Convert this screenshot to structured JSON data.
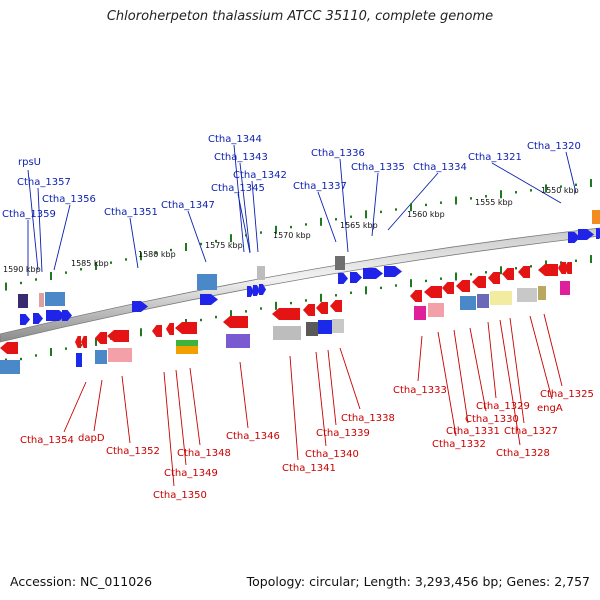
{
  "title": "Chloroherpeton thalassium ATCC 35110, complete genome",
  "footer": {
    "accession": "Accession: NC_011026",
    "topology": "Topology: circular; Length: 3,293,456 bp; Genes: 2,757"
  },
  "scale_labels": [
    "1590 kbp",
    "1585 kbp",
    "1580 kbp",
    "1575 kbp",
    "1570 kbp",
    "1565 kbp",
    "1560 kbp",
    "1555 kbp",
    "1550 kbp"
  ],
  "top_strand_genes": [
    "rpsU",
    "Ctha_1357",
    "Ctha_1356",
    "Ctha_1359",
    "Ctha_1351",
    "Ctha_1347",
    "Ctha_1344",
    "Ctha_1343",
    "Ctha_1342",
    "Ctha_1345",
    "Ctha_1336",
    "Ctha_1337",
    "Ctha_1335",
    "Ctha_1334",
    "Ctha_1321",
    "Ctha_1320"
  ],
  "bottom_strand_genes": [
    "Ctha_1354",
    "dapD",
    "Ctha_1352",
    "Ctha_1350",
    "Ctha_1349",
    "Ctha_1348",
    "Ctha_1346",
    "Ctha_1341",
    "Ctha_1340",
    "Ctha_1339",
    "Ctha_1338",
    "Ctha_1333",
    "Ctha_1332",
    "Ctha_1331",
    "Ctha_1330",
    "Ctha_1329",
    "Ctha_1328",
    "Ctha_1327",
    "engA",
    "Ctha_1325"
  ],
  "colors": {
    "top_label": "#0b1fb0",
    "bottom_label": "#c80000",
    "forward_gene": "#1f24e8",
    "reverse_gene": "#e41414",
    "scale_tick": "#1f7a1f"
  }
}
